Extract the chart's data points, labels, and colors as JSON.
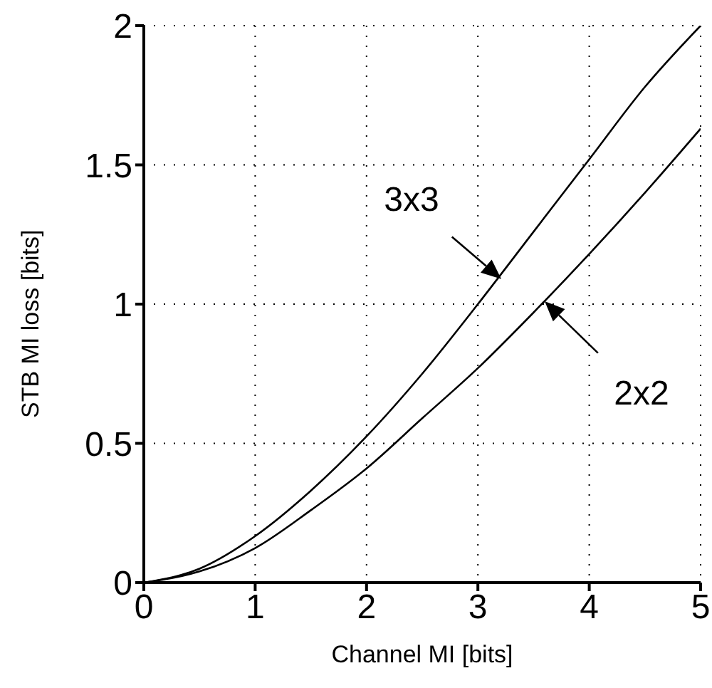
{
  "chart_data": {
    "type": "line",
    "xlabel": "Channel MI [bits]",
    "ylabel": "STB MI loss [bits]",
    "x": [
      0,
      0.5,
      1,
      1.5,
      2,
      2.5,
      3,
      3.5,
      4,
      4.5,
      5
    ],
    "series": [
      {
        "color": "#000000",
        "values": [
          0,
          0.05,
          0.167,
          0.33,
          0.525,
          0.75,
          1.0,
          1.26,
          1.52,
          1.78,
          2.0
        ]
      },
      {
        "color": "#000000",
        "values": [
          0,
          0.04,
          0.124,
          0.26,
          0.41,
          0.59,
          0.77,
          0.97,
          1.18,
          1.4,
          1.63
        ]
      }
    ],
    "xlim": [
      0,
      5
    ],
    "xticks": [
      0,
      1,
      2,
      3,
      4,
      5
    ],
    "ylim": [
      0,
      2
    ],
    "yticks": [
      0,
      0.5,
      1,
      1.5,
      2
    ],
    "annotations": [
      {
        "text": "3x3",
        "x": 3.21,
        "y": 1.09
      },
      {
        "text": "2x2",
        "x": 3.6,
        "y": 1.01
      }
    ],
    "grid": true,
    "marker": "none",
    "line_style": "solid"
  }
}
